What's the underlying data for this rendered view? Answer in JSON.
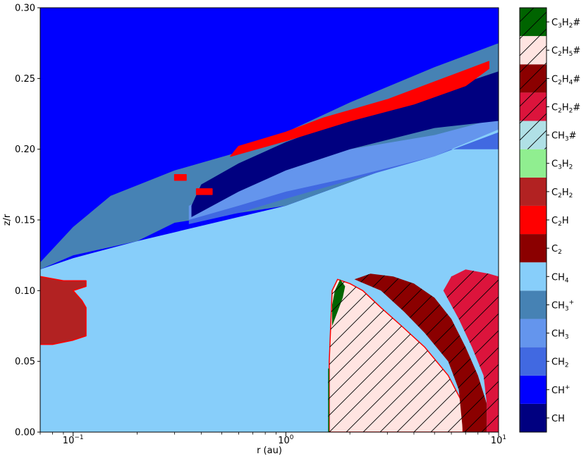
{
  "chart_data": {
    "type": "heatmap",
    "title": "",
    "xlabel": "r (au)",
    "ylabel": "z/r",
    "xscale": "log",
    "xlim": [
      0.07,
      10
    ],
    "ylim": [
      0.0,
      0.3
    ],
    "x_ticks": [
      {
        "value": 0.1,
        "base": "10",
        "exp": "−1"
      },
      {
        "value": 1,
        "base": "10",
        "exp": "0"
      },
      {
        "value": 10,
        "base": "10",
        "exp": "1"
      }
    ],
    "y_ticks": [
      {
        "value": 0.0,
        "label": "0.00"
      },
      {
        "value": 0.05,
        "label": "0.05"
      },
      {
        "value": 0.1,
        "label": "0.10"
      },
      {
        "value": 0.15,
        "label": "0.15"
      },
      {
        "value": 0.2,
        "label": "0.20"
      },
      {
        "value": 0.25,
        "label": "0.25"
      },
      {
        "value": 0.3,
        "label": "0.30"
      }
    ],
    "legend_position": "right colorbar",
    "categories": [
      {
        "id": "CH",
        "parts": [
          [
            "CH",
            ""
          ]
        ],
        "color": "#000080",
        "hatched": false
      },
      {
        "id": "CH+",
        "parts": [
          [
            "CH",
            ""
          ],
          [
            "+",
            "sup"
          ]
        ],
        "color": "#0000ff",
        "hatched": false
      },
      {
        "id": "CH2",
        "parts": [
          [
            "CH",
            ""
          ],
          [
            "2",
            "sub"
          ]
        ],
        "color": "#4169e1",
        "hatched": false
      },
      {
        "id": "CH3",
        "parts": [
          [
            "CH",
            ""
          ],
          [
            "3",
            "sub"
          ]
        ],
        "color": "#6495ed",
        "hatched": false
      },
      {
        "id": "CH3+",
        "parts": [
          [
            "CH",
            ""
          ],
          [
            "3",
            "sub"
          ],
          [
            "+",
            "sup"
          ]
        ],
        "color": "#4682b4",
        "hatched": false
      },
      {
        "id": "CH4",
        "parts": [
          [
            "CH",
            ""
          ],
          [
            "4",
            "sub"
          ]
        ],
        "color": "#87cefa",
        "hatched": false
      },
      {
        "id": "C2",
        "parts": [
          [
            "C",
            ""
          ],
          [
            "2",
            "sub"
          ]
        ],
        "color": "#8b0000",
        "hatched": false
      },
      {
        "id": "C2H",
        "parts": [
          [
            "C",
            ""
          ],
          [
            "2",
            "sub"
          ],
          [
            "H",
            ""
          ]
        ],
        "color": "#ff0000",
        "hatched": false
      },
      {
        "id": "C2H2",
        "parts": [
          [
            "C",
            ""
          ],
          [
            "2",
            "sub"
          ],
          [
            "H",
            ""
          ],
          [
            "2",
            "sub"
          ]
        ],
        "color": "#b22222",
        "hatched": false
      },
      {
        "id": "C3H2",
        "parts": [
          [
            "C",
            ""
          ],
          [
            "3",
            "sub"
          ],
          [
            "H",
            ""
          ],
          [
            "2",
            "sub"
          ]
        ],
        "color": "#90ee90",
        "hatched": false
      },
      {
        "id": "CH3#",
        "parts": [
          [
            "CH",
            ""
          ],
          [
            "3",
            "sub"
          ],
          [
            "#",
            ""
          ]
        ],
        "color": "#b0e0e6",
        "hatched": true
      },
      {
        "id": "C2H2#",
        "parts": [
          [
            "C",
            ""
          ],
          [
            "2",
            "sub"
          ],
          [
            "H",
            ""
          ],
          [
            "2",
            "sub"
          ],
          [
            "#",
            ""
          ]
        ],
        "color": "#dc143c",
        "hatched": true
      },
      {
        "id": "C2H4#",
        "parts": [
          [
            "C",
            ""
          ],
          [
            "2",
            "sub"
          ],
          [
            "H",
            ""
          ],
          [
            "4",
            "sub"
          ],
          [
            "#",
            ""
          ]
        ],
        "color": "#8b0000",
        "hatched": true
      },
      {
        "id": "C2H5#",
        "parts": [
          [
            "C",
            ""
          ],
          [
            "2",
            "sub"
          ],
          [
            "H",
            ""
          ],
          [
            "5",
            "sub"
          ],
          [
            "#",
            ""
          ]
        ],
        "color": "#ffe4e1",
        "hatched": true
      },
      {
        "id": "C3H2#",
        "parts": [
          [
            "C",
            ""
          ],
          [
            "3",
            "sub"
          ],
          [
            "H",
            ""
          ],
          [
            "2",
            "sub"
          ],
          [
            "#",
            ""
          ]
        ],
        "color": "#006400",
        "hatched": true
      }
    ],
    "regions": [
      {
        "species": "CH+",
        "outline": false,
        "points": [
          [
            0.07,
            0.3
          ],
          [
            10,
            0.3
          ],
          [
            10,
            0.07
          ],
          [
            0.07,
            0.07
          ]
        ]
      },
      {
        "species": "CH4",
        "outline": false,
        "points": [
          [
            0.07,
            0.0
          ],
          [
            10,
            0.0
          ],
          [
            10,
            0.215
          ],
          [
            1,
            0.16
          ],
          [
            0.2,
            0.135
          ],
          [
            0.1,
            0.123
          ],
          [
            0.07,
            0.115
          ]
        ]
      },
      {
        "species": "CH3+",
        "outline": false,
        "points": [
          [
            0.07,
            0.12
          ],
          [
            0.1,
            0.145
          ],
          [
            0.15,
            0.167
          ],
          [
            0.3,
            0.185
          ],
          [
            0.6,
            0.198
          ],
          [
            1,
            0.212
          ],
          [
            2,
            0.233
          ],
          [
            5,
            0.258
          ],
          [
            10,
            0.275
          ],
          [
            10,
            0.215
          ],
          [
            1,
            0.16
          ],
          [
            0.3,
            0.148
          ],
          [
            0.2,
            0.135
          ],
          [
            0.1,
            0.125
          ],
          [
            0.07,
            0.115
          ]
        ]
      },
      {
        "species": "CH2",
        "outline": false,
        "points": [
          [
            0.35,
            0.147
          ],
          [
            0.6,
            0.155
          ],
          [
            1,
            0.165
          ],
          [
            2,
            0.178
          ],
          [
            5,
            0.195
          ],
          [
            10,
            0.212
          ],
          [
            10,
            0.2
          ],
          [
            5,
            0.2
          ],
          [
            2,
            0.19
          ],
          [
            1,
            0.18
          ],
          [
            0.6,
            0.165
          ],
          [
            0.35,
            0.15
          ]
        ]
      },
      {
        "species": "CH3",
        "outline": false,
        "points": [
          [
            0.35,
            0.15
          ],
          [
            0.6,
            0.16
          ],
          [
            1,
            0.17
          ],
          [
            2,
            0.18
          ],
          [
            5,
            0.195
          ],
          [
            10,
            0.214
          ],
          [
            10,
            0.222
          ],
          [
            5,
            0.21
          ],
          [
            2,
            0.2
          ],
          [
            1,
            0.19
          ],
          [
            0.5,
            0.17
          ],
          [
            0.35,
            0.16
          ]
        ]
      },
      {
        "species": "CH",
        "outline": false,
        "points": [
          [
            0.36,
            0.152
          ],
          [
            0.6,
            0.17
          ],
          [
            1,
            0.185
          ],
          [
            2,
            0.2
          ],
          [
            5,
            0.215
          ],
          [
            10,
            0.22
          ],
          [
            10,
            0.255
          ],
          [
            5,
            0.24
          ],
          [
            2,
            0.222
          ],
          [
            1,
            0.205
          ],
          [
            0.6,
            0.19
          ],
          [
            0.4,
            0.175
          ],
          [
            0.36,
            0.16
          ]
        ]
      },
      {
        "species": "C2H",
        "outline": true,
        "points": [
          [
            0.55,
            0.195
          ],
          [
            1,
            0.206
          ],
          [
            2,
            0.22
          ],
          [
            4,
            0.232
          ],
          [
            7,
            0.245
          ],
          [
            9,
            0.257
          ],
          [
            9,
            0.262
          ],
          [
            6,
            0.252
          ],
          [
            3,
            0.235
          ],
          [
            1.5,
            0.222
          ],
          [
            1,
            0.212
          ],
          [
            0.6,
            0.202
          ]
        ]
      },
      {
        "species": "C2H",
        "outline": true,
        "points": [
          [
            0.38,
            0.168
          ],
          [
            0.45,
            0.168
          ],
          [
            0.45,
            0.172
          ],
          [
            0.38,
            0.172
          ]
        ]
      },
      {
        "species": "C2H",
        "outline": true,
        "points": [
          [
            0.3,
            0.178
          ],
          [
            0.34,
            0.178
          ],
          [
            0.34,
            0.182
          ],
          [
            0.3,
            0.182
          ]
        ]
      },
      {
        "species": "C2H2",
        "outline": true,
        "points": [
          [
            0.07,
            0.062
          ],
          [
            0.08,
            0.062
          ],
          [
            0.1,
            0.065
          ],
          [
            0.115,
            0.068
          ],
          [
            0.115,
            0.088
          ],
          [
            0.11,
            0.093
          ],
          [
            0.1,
            0.1
          ],
          [
            0.115,
            0.103
          ],
          [
            0.115,
            0.107
          ],
          [
            0.09,
            0.107
          ],
          [
            0.07,
            0.11
          ]
        ]
      },
      {
        "species": "C2H5#",
        "outline": true,
        "points": [
          [
            1.6,
            0.0
          ],
          [
            6.8,
            0.0
          ],
          [
            6.8,
            0.02
          ],
          [
            5.8,
            0.04
          ],
          [
            4.5,
            0.06
          ],
          [
            3.5,
            0.075
          ],
          [
            2.8,
            0.088
          ],
          [
            2.3,
            0.1
          ],
          [
            2,
            0.105
          ],
          [
            1.75,
            0.108
          ],
          [
            1.65,
            0.1
          ],
          [
            1.6,
            0.05
          ]
        ]
      },
      {
        "species": "C2H4#",
        "outline": false,
        "points": [
          [
            6.8,
            0.0
          ],
          [
            8.8,
            0.0
          ],
          [
            8.8,
            0.02
          ],
          [
            8,
            0.04
          ],
          [
            7,
            0.06
          ],
          [
            6,
            0.08
          ],
          [
            5,
            0.095
          ],
          [
            4,
            0.105
          ],
          [
            3.2,
            0.11
          ],
          [
            2.5,
            0.112
          ],
          [
            2.1,
            0.108
          ],
          [
            2.8,
            0.1
          ],
          [
            3.6,
            0.085
          ],
          [
            4.5,
            0.07
          ],
          [
            5.8,
            0.05
          ],
          [
            6.5,
            0.03
          ]
        ]
      },
      {
        "species": "C2H2#",
        "outline": false,
        "points": [
          [
            8.8,
            0.0
          ],
          [
            10,
            0.0
          ],
          [
            10,
            0.11
          ],
          [
            9,
            0.112
          ],
          [
            7,
            0.115
          ],
          [
            6,
            0.11
          ],
          [
            5.5,
            0.1
          ],
          [
            6.5,
            0.08
          ],
          [
            7.5,
            0.06
          ],
          [
            8.5,
            0.04
          ],
          [
            8.8,
            0.02
          ]
        ]
      },
      {
        "species": "C3H2#",
        "outline": false,
        "points": [
          [
            1.65,
            0.075
          ],
          [
            1.75,
            0.085
          ],
          [
            1.85,
            0.095
          ],
          [
            1.9,
            0.103
          ],
          [
            1.8,
            0.108
          ],
          [
            1.7,
            0.1
          ],
          [
            1.65,
            0.09
          ]
        ]
      },
      {
        "species": "C3H2#",
        "outline": false,
        "points": [
          [
            1.58,
            0.0
          ],
          [
            1.6,
            0.0
          ],
          [
            1.6,
            0.045
          ],
          [
            1.58,
            0.045
          ]
        ]
      }
    ]
  }
}
